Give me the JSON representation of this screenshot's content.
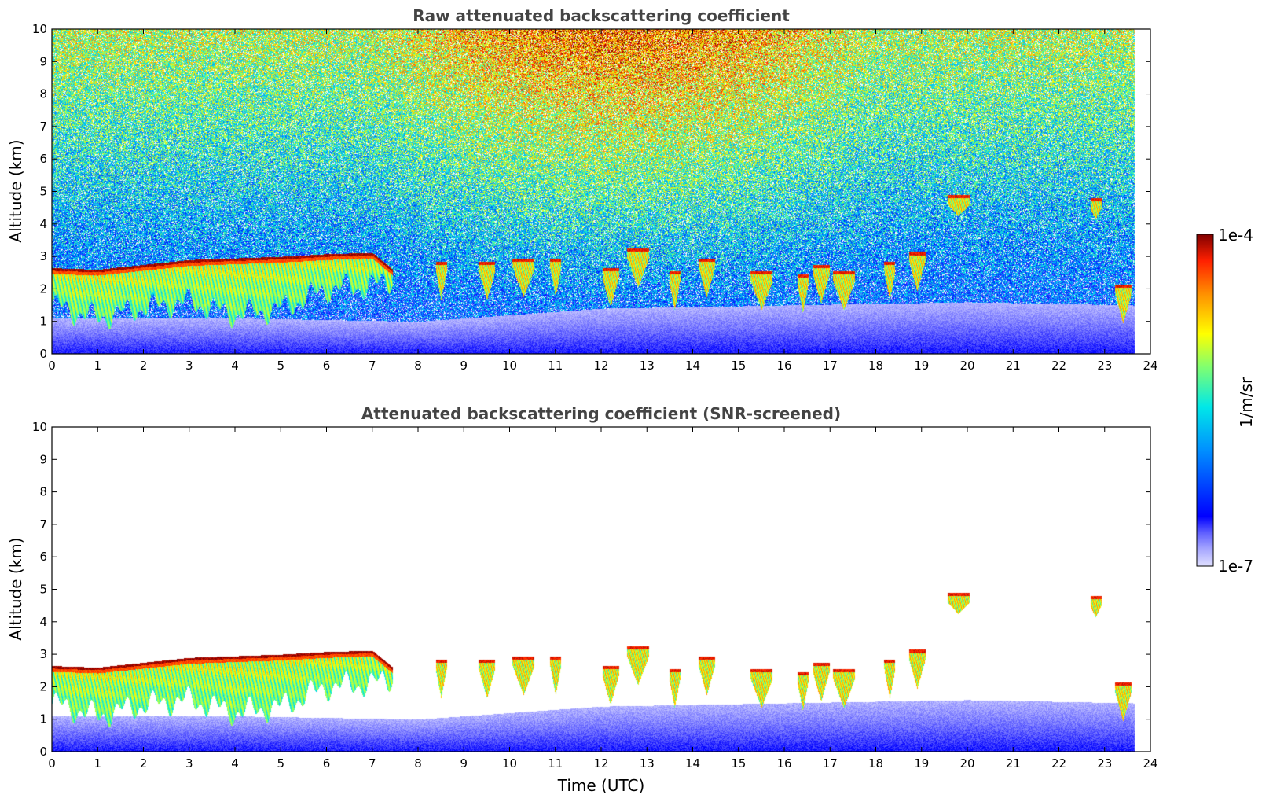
{
  "chart_data": [
    {
      "type": "heatmap",
      "title": "Raw attenuated backscattering coefficient",
      "xlabel": "",
      "ylabel": "Altitude (km)",
      "xlim": [
        0,
        24
      ],
      "ylim": [
        0,
        10
      ],
      "x_ticks": [
        "0",
        "1",
        "2",
        "3",
        "4",
        "5",
        "6",
        "7",
        "8",
        "9",
        "10",
        "11",
        "12",
        "13",
        "14",
        "15",
        "16",
        "17",
        "18",
        "19",
        "20",
        "21",
        "22",
        "23",
        "24"
      ],
      "y_ticks": [
        "0",
        "1",
        "2",
        "3",
        "4",
        "5",
        "6",
        "7",
        "8",
        "9",
        "10"
      ],
      "data_end_time": 23.65,
      "background_noise": "strong, increasing with altitude and with solar background between ~7 and ~18 UTC",
      "cloud_base_layer": [
        {
          "t": 0.0,
          "top": 2.65,
          "base": 1.5
        },
        {
          "t": 1.0,
          "top": 2.6,
          "base": 1.1
        },
        {
          "t": 2.0,
          "top": 2.75,
          "base": 1.45
        },
        {
          "t": 3.0,
          "top": 2.9,
          "base": 1.6
        },
        {
          "t": 4.0,
          "top": 2.95,
          "base": 1.2
        },
        {
          "t": 5.0,
          "top": 3.0,
          "base": 1.4
        },
        {
          "t": 6.0,
          "top": 3.08,
          "base": 2.0
        },
        {
          "t": 7.0,
          "top": 3.12,
          "base": 2.1
        },
        {
          "t": 7.45,
          "top": 2.6,
          "base": 2.3
        }
      ],
      "scattered_clouds": [
        {
          "t": 8.5,
          "alt": 2.3
        },
        {
          "t": 9.5,
          "alt": 2.3
        },
        {
          "t": 10.3,
          "alt": 2.4
        },
        {
          "t": 11.0,
          "alt": 2.4
        },
        {
          "t": 12.2,
          "alt": 2.1
        },
        {
          "t": 12.8,
          "alt": 2.7
        },
        {
          "t": 13.6,
          "alt": 2.0
        },
        {
          "t": 14.3,
          "alt": 2.4
        },
        {
          "t": 15.5,
          "alt": 2.0
        },
        {
          "t": 16.4,
          "alt": 1.9
        },
        {
          "t": 16.8,
          "alt": 2.2
        },
        {
          "t": 17.3,
          "alt": 2.0
        },
        {
          "t": 18.3,
          "alt": 2.3
        },
        {
          "t": 18.9,
          "alt": 2.6
        },
        {
          "t": 19.8,
          "alt": 4.6
        },
        {
          "t": 22.8,
          "alt": 4.5
        },
        {
          "t": 23.4,
          "alt": 1.6
        }
      ]
    },
    {
      "type": "heatmap",
      "title": "Attenuated backscattering coefficient (SNR-screened)",
      "xlabel": "Time (UTC)",
      "ylabel": "Altitude (km)",
      "xlim": [
        0,
        24
      ],
      "ylim": [
        0,
        10
      ],
      "x_ticks": [
        "0",
        "1",
        "2",
        "3",
        "4",
        "5",
        "6",
        "7",
        "8",
        "9",
        "10",
        "11",
        "12",
        "13",
        "14",
        "15",
        "16",
        "17",
        "18",
        "19",
        "20",
        "21",
        "22",
        "23",
        "24"
      ],
      "y_ticks": [
        "0",
        "1",
        "2",
        "3",
        "4",
        "5",
        "6",
        "7",
        "8",
        "9",
        "10"
      ],
      "data_end_time": 23.65,
      "background_noise": "removed (white) where SNR below threshold",
      "boundary_layer_top": [
        {
          "t": 0.0,
          "alt": 1.1
        },
        {
          "t": 4.0,
          "alt": 1.1
        },
        {
          "t": 8.0,
          "alt": 1.0
        },
        {
          "t": 12.0,
          "alt": 1.4
        },
        {
          "t": 16.0,
          "alt": 1.5
        },
        {
          "t": 20.0,
          "alt": 1.6
        },
        {
          "t": 23.65,
          "alt": 1.5
        }
      ]
    }
  ],
  "colorbar": {
    "max_label": "1e-4",
    "min_label": "1e-7",
    "label": "1/m/sr",
    "colormap": "jet",
    "colors": [
      "#ffffff",
      "#c8c8f8",
      "#8888ff",
      "#0000ff",
      "#00a0ff",
      "#00e8e8",
      "#70ff80",
      "#ffff00",
      "#ff9000",
      "#ff2000",
      "#800000"
    ]
  }
}
